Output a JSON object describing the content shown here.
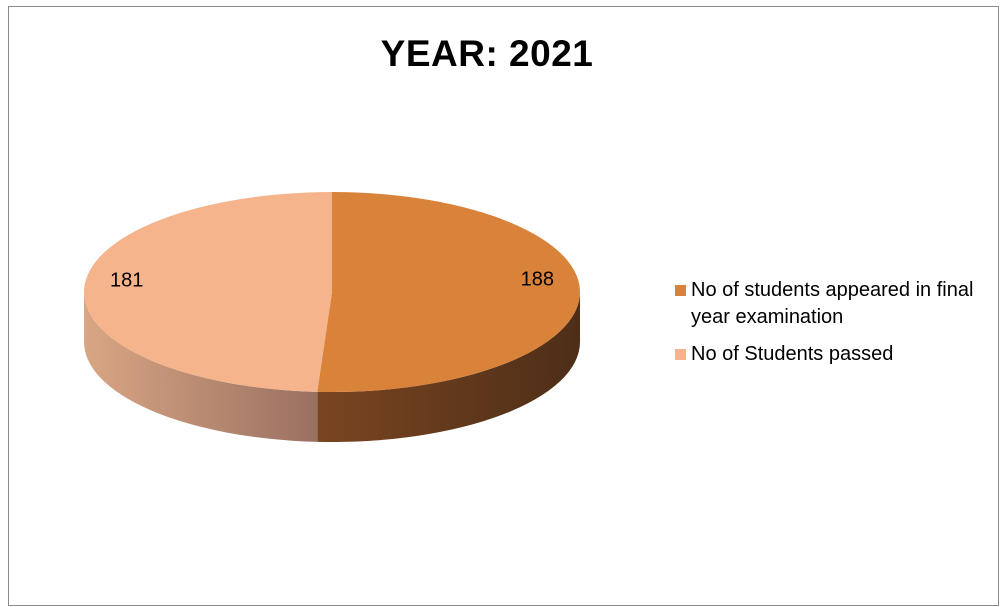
{
  "chart_data": {
    "type": "pie",
    "title": "YEAR: 2021",
    "categories": [
      "No of students appeared in final year examination",
      "No of Students passed"
    ],
    "values": [
      188,
      181
    ],
    "data_labels": [
      "188",
      "181"
    ],
    "colors": [
      "#D9823A",
      "#F5B48C"
    ],
    "legend_position": "right",
    "style": "3d"
  },
  "legend": {
    "items": [
      {
        "label": "No of students appeared in final year examination",
        "color": "#D9823A"
      },
      {
        "label": "No of Students passed",
        "color": "#F5B48C"
      }
    ]
  }
}
